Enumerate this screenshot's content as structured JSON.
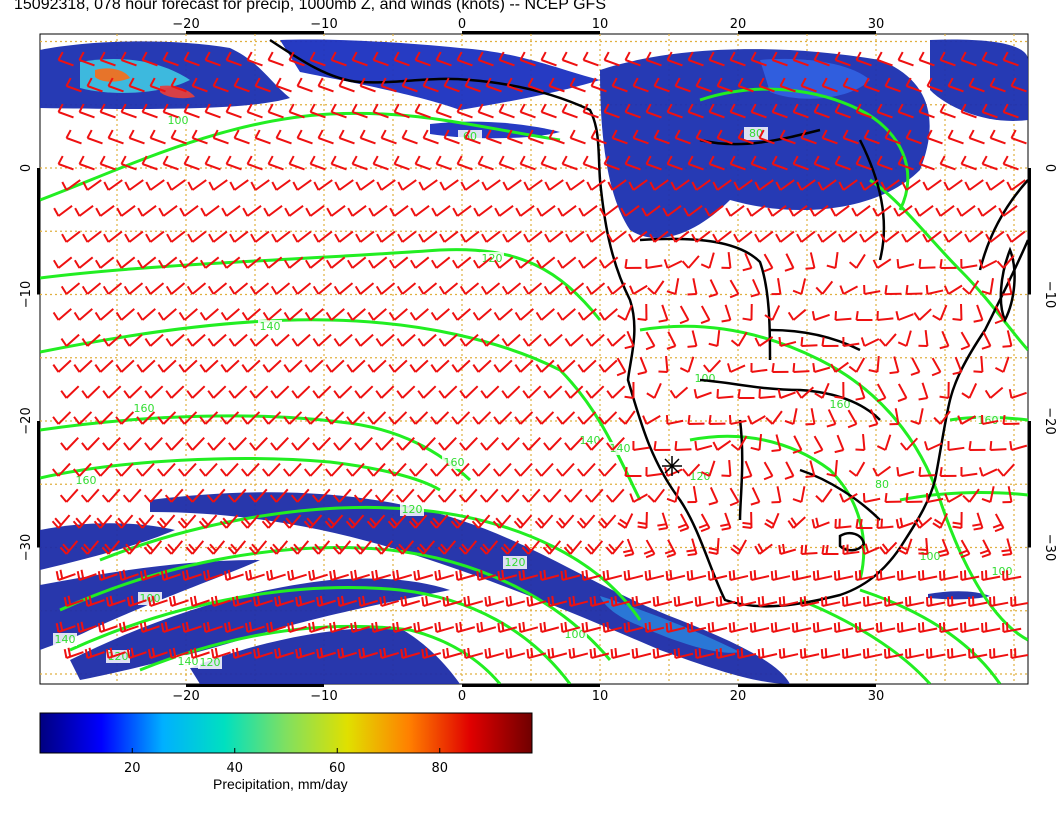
{
  "title": "15092318, 078 hour forecast for precip, 1000mb Z, and winds (knots) -- NCEP GFS",
  "map": {
    "lon_ticks": [
      "−20",
      "−10",
      "0",
      "10",
      "20",
      "30"
    ],
    "lat_ticks": [
      "0",
      "−10",
      "−20",
      "−30"
    ],
    "contour_labels": [
      "100",
      "80",
      "120",
      "140",
      "160",
      "160",
      "160",
      "140",
      "140",
      "120",
      "120",
      "120",
      "160",
      "100",
      "100",
      "100",
      "160",
      "140",
      "140",
      "120",
      "120",
      "100",
      "100",
      "80",
      "60"
    ],
    "colors": {
      "wind_barbs": "#ee1111",
      "height_contours": "#22ee22",
      "coastlines": "#000000",
      "grid": "#e0b040"
    }
  },
  "colorbar": {
    "ticks": [
      "20",
      "40",
      "60",
      "80"
    ],
    "label": "Precipitation, mm/day",
    "stops": [
      "#000080",
      "#0000ff",
      "#00b0ff",
      "#00e0c0",
      "#80e060",
      "#e0e000",
      "#ff8000",
      "#e00000",
      "#700000"
    ]
  }
}
